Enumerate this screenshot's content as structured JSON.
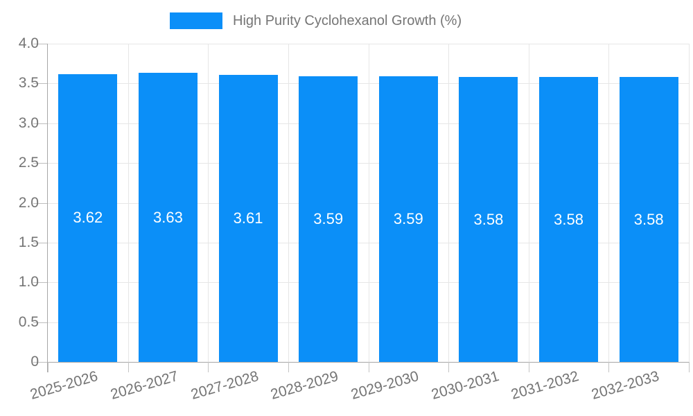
{
  "legend": {
    "position": "top"
  },
  "chart_data": {
    "type": "bar",
    "title": "",
    "xlabel": "",
    "ylabel": "",
    "categories": [
      "2025-2026",
      "2026-2027",
      "2027-2028",
      "2028-2029",
      "2029-2030",
      "2030-2031",
      "2031-2032",
      "2032-2033"
    ],
    "series": [
      {
        "name": "High Purity Cyclohexanol Growth (%)",
        "values": [
          3.62,
          3.63,
          3.61,
          3.59,
          3.59,
          3.58,
          3.58,
          3.58
        ]
      }
    ],
    "value_labels": [
      "3.62",
      "3.63",
      "3.61",
      "3.59",
      "3.59",
      "3.58",
      "3.58",
      "3.58"
    ],
    "ylim": [
      0,
      4
    ],
    "ytick_step": 0.5,
    "ytick_labels": [
      "0",
      "0.5",
      "1.0",
      "1.5",
      "2.0",
      "2.5",
      "3.0",
      "3.5",
      "4.0"
    ],
    "grid": true,
    "legend_position": "top",
    "colors": {
      "bar": "#0b8ff8",
      "value_label": "#ffffff",
      "axis_text": "#757575",
      "gridline": "#e6e6e6",
      "axis_line": "#a6a6a6"
    }
  }
}
